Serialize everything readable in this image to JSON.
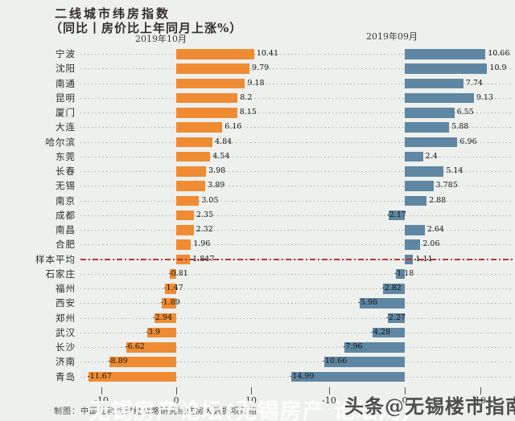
{
  "header": {
    "title": "二线城市纬房指数",
    "subtitle": "（同比丨房价比上年同月上涨%）"
  },
  "chart_data": {
    "type": "bar",
    "orientation": "horizontal",
    "title": "二线城市纬房指数（同比丨房价比上年同月上涨%）",
    "categories": [
      "宁波",
      "沈阳",
      "南通",
      "昆明",
      "厦门",
      "大连",
      "哈尔滨",
      "东莞",
      "长春",
      "无锡",
      "南京",
      "成都",
      "南昌",
      "合肥",
      "样本平均",
      "石家庄",
      "福州",
      "西安",
      "郑州",
      "武汉",
      "长沙",
      "济南",
      "青岛"
    ],
    "series": [
      {
        "name": "2019年10月",
        "color": "#ef8b33",
        "values": [
          10.41,
          9.79,
          9.18,
          8.2,
          8.15,
          6.16,
          4.84,
          4.54,
          3.98,
          3.89,
          3.05,
          2.35,
          2.32,
          1.96,
          1.847,
          -0.81,
          -1.47,
          -1.89,
          -2.94,
          -3.9,
          -6.62,
          -8.89,
          -11.67
        ]
      },
      {
        "name": "2019年09月",
        "color": "#5f87a3",
        "values": [
          10.66,
          10.9,
          7.74,
          9.13,
          6.55,
          5.88,
          6.96,
          2.4,
          5.14,
          3.785,
          2.88,
          -2.17,
          2.64,
          2.06,
          1.11,
          -1.18,
          -2.82,
          -5.98,
          -2.27,
          -4.28,
          -7.96,
          -10.66,
          -14.99
        ]
      }
    ],
    "x_ticks": [
      "-10",
      "0",
      "10"
    ],
    "x_tick_values": [
      -10,
      0,
      10
    ],
    "xlim_left_panel": [
      -13,
      12
    ],
    "xlim_right_panel": [
      -16,
      12
    ],
    "average_row": "样本平均",
    "average_line_style": "red dash-dot horizontal line across the 样本平均 row",
    "grid": "dotted leader line across every row",
    "legend_position": "panel headers above each bar group"
  },
  "footer": {
    "credit": "制图：中国社科院财经战略研究院住房大数据项目组"
  },
  "watermarks": {
    "forum": "无锡房产论坛(无锡房产 论坛网)",
    "toutiao": "头条@无锡楼市指南"
  },
  "colors": {
    "background": "#eef0ed",
    "october_bar": "#ef8b33",
    "september_bar": "#5f87a3",
    "average_line": "#b73a2e",
    "text": "#2f2b2b"
  }
}
